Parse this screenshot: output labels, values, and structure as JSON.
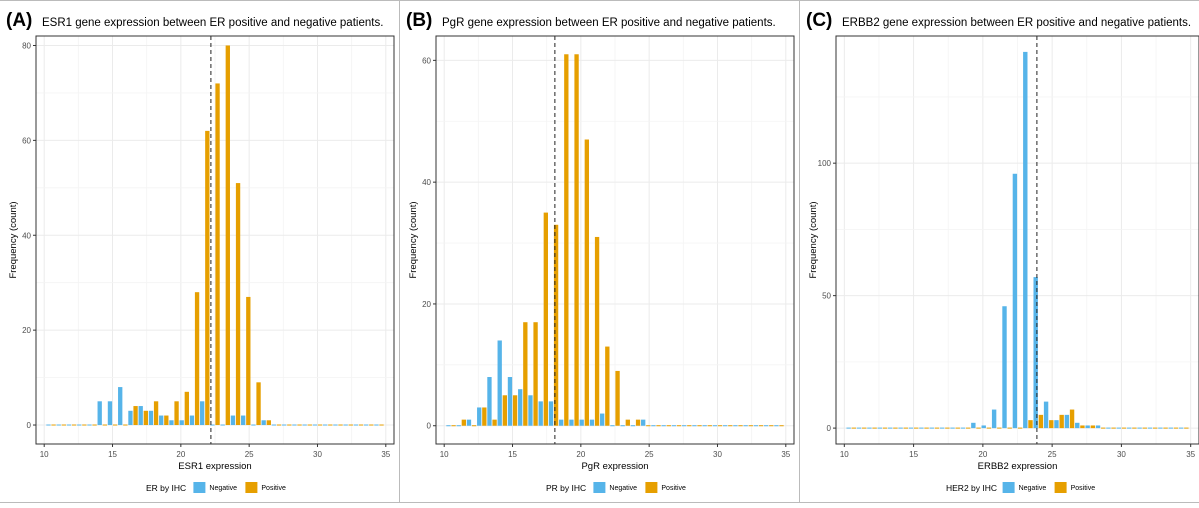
{
  "colors": {
    "negative": "#56B4E9",
    "positive": "#E69F00",
    "grid": "#ebebeb",
    "axis": "#333333"
  },
  "chart_data": [
    {
      "type": "bar",
      "panel_label": "(A)",
      "title": "ESR1 gene expression between ER positive and negative patients.",
      "xlabel": "ESR1 expression",
      "ylabel": "Frequency (count)",
      "xlim": [
        9.4,
        35.6
      ],
      "ylim": [
        -4,
        82
      ],
      "xticks": [
        10,
        15,
        20,
        25,
        30,
        35
      ],
      "yticks": [
        0,
        20,
        40,
        60,
        80
      ],
      "cutoff": 22.2,
      "bin_centers": [
        10.5,
        11.25,
        12,
        12.75,
        13.5,
        14.25,
        15,
        15.75,
        16.5,
        17.25,
        18,
        18.75,
        19.5,
        20.25,
        21,
        21.75,
        22.5,
        23.25,
        24,
        24.75,
        25.5,
        26.25,
        27,
        27.75,
        28.5,
        29.25,
        30,
        30.75,
        31.5,
        32.25,
        33,
        33.75,
        34.5
      ],
      "legend_title": "ER by IHC",
      "series": [
        {
          "name": "Negative",
          "values": [
            0,
            0,
            0,
            0,
            0,
            5,
            5,
            8,
            3,
            4,
            3,
            2,
            1,
            1,
            2,
            5,
            0,
            0,
            2,
            2,
            0,
            1,
            0,
            0,
            0,
            0,
            0,
            0,
            0,
            0,
            0,
            0,
            0
          ]
        },
        {
          "name": "Positive",
          "values": [
            0,
            0,
            0,
            0,
            0,
            0,
            0,
            0,
            4,
            3,
            5,
            2,
            5,
            7,
            28,
            62,
            72,
            80,
            51,
            27,
            9,
            1,
            0,
            0,
            0,
            0,
            0,
            0,
            0,
            0,
            0,
            0,
            0
          ]
        }
      ]
    },
    {
      "type": "bar",
      "panel_label": "(B)",
      "title": "PgR gene expression between ER positive and negative patients.",
      "xlabel": "PgR expression",
      "ylabel": "Frequency (count)",
      "xlim": [
        9.4,
        35.6
      ],
      "ylim": [
        -3,
        64
      ],
      "xticks": [
        10,
        15,
        20,
        25,
        30,
        35
      ],
      "yticks": [
        0,
        20,
        40,
        60
      ],
      "cutoff": 18.1,
      "bin_centers": [
        10.5,
        11.25,
        12,
        12.75,
        13.5,
        14.25,
        15,
        15.75,
        16.5,
        17.25,
        18,
        18.75,
        19.5,
        20.25,
        21,
        21.75,
        22.5,
        23.25,
        24,
        24.75,
        25.5,
        26.25,
        27,
        27.75,
        28.5,
        29.25,
        30,
        30.75,
        31.5,
        32.25,
        33,
        33.75,
        34.5
      ],
      "legend_title": "PR by IHC",
      "series": [
        {
          "name": "Negative",
          "values": [
            0,
            0,
            1,
            3,
            8,
            14,
            8,
            6,
            5,
            4,
            4,
            1,
            1,
            1,
            1,
            2,
            0,
            0,
            0,
            1,
            0,
            0,
            0,
            0,
            0,
            0,
            0,
            0,
            0,
            0,
            0,
            0,
            0
          ]
        },
        {
          "name": "Positive",
          "values": [
            0,
            1,
            0,
            3,
            1,
            5,
            5,
            17,
            17,
            35,
            33,
            61,
            61,
            47,
            31,
            13,
            9,
            1,
            1,
            0,
            0,
            0,
            0,
            0,
            0,
            0,
            0,
            0,
            0,
            0,
            0,
            0,
            0
          ]
        }
      ]
    },
    {
      "type": "bar",
      "panel_label": "(C)",
      "title": "ERBB2 gene expression between ER positive and negative patients.",
      "xlabel": "ERBB2 expression",
      "ylabel": "Frequency (count)",
      "xlim": [
        9.4,
        35.6
      ],
      "ylim": [
        -6,
        148
      ],
      "xticks": [
        10,
        15,
        20,
        25,
        30,
        35
      ],
      "yticks": [
        0,
        50,
        100
      ],
      "cutoff": 23.9,
      "bin_centers": [
        10.5,
        11.25,
        12,
        12.75,
        13.5,
        14.25,
        15,
        15.75,
        16.5,
        17.25,
        18,
        18.75,
        19.5,
        20.25,
        21,
        21.75,
        22.5,
        23.25,
        24,
        24.75,
        25.5,
        26.25,
        27,
        27.75,
        28.5,
        29.25,
        30,
        30.75,
        31.5,
        32.25,
        33,
        33.75,
        34.5
      ],
      "legend_title": "HER2 by IHC",
      "series": [
        {
          "name": "Negative",
          "values": [
            0,
            0,
            0,
            0,
            0,
            0,
            0,
            0,
            0,
            0,
            0,
            0,
            2,
            1,
            7,
            46,
            96,
            142,
            57,
            10,
            3,
            5,
            2,
            1,
            1,
            0,
            0,
            0,
            0,
            0,
            0,
            0,
            0
          ]
        },
        {
          "name": "Positive",
          "values": [
            0,
            0,
            0,
            0,
            0,
            0,
            0,
            0,
            0,
            0,
            0,
            0,
            0,
            0,
            0,
            0,
            0,
            3,
            5,
            3,
            5,
            7,
            1,
            1,
            0,
            0,
            0,
            0,
            0,
            0,
            0,
            0,
            0
          ]
        }
      ]
    }
  ]
}
